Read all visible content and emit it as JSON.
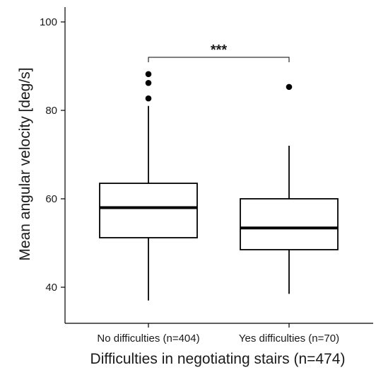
{
  "chart_data": {
    "type": "box",
    "title": "",
    "xlabel": "Difficulties in negotiating stairs (n=474)",
    "ylabel": "Mean angular velocity [deg/s]",
    "ylim": [
      33,
      103
    ],
    "yticks": [
      40,
      60,
      80,
      100
    ],
    "grid": false,
    "legend": "none",
    "categories": [
      "No difficulties (n=404)",
      "Yes difficulties (n=70)"
    ],
    "boxes": [
      {
        "category": "No difficulties (n=404)",
        "whisker_low": 37,
        "q1": 51.2,
        "median": 58,
        "q3": 63.5,
        "whisker_high": 81,
        "outliers": [
          82.7,
          86.2,
          88.2
        ]
      },
      {
        "category": "Yes difficulties (n=70)",
        "whisker_low": 38.5,
        "q1": 48.5,
        "median": 53.4,
        "q3": 60,
        "whisker_high": 72,
        "outliers": [
          85.3
        ]
      }
    ],
    "significance": {
      "label": "***",
      "y": 92,
      "between": [
        0,
        1
      ]
    },
    "colors": {
      "stroke": "#000000",
      "fill": "#ffffff",
      "text": "#1a1a1a"
    }
  }
}
